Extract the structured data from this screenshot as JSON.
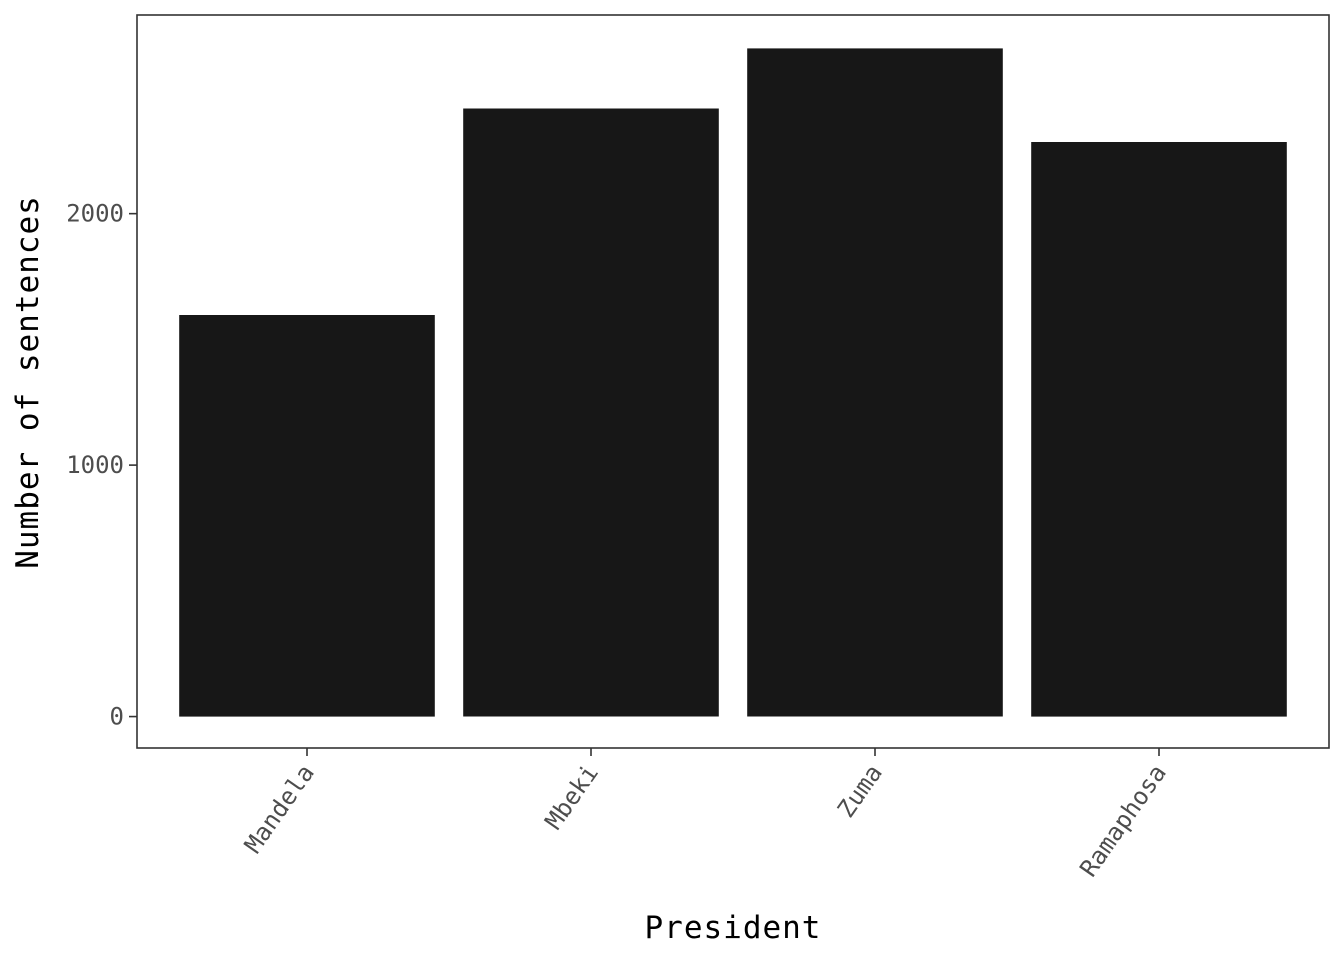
{
  "chart_data": {
    "type": "bar",
    "title": "",
    "xlabel": "President",
    "ylabel": "Number of sentences",
    "categories": [
      "Mandela",
      "Mbeki",
      "Zuma",
      "Ramaphosa"
    ],
    "values": [
      1597,
      2418,
      2657,
      2285
    ],
    "ylim": [
      -125,
      2790
    ],
    "yticks": [
      0,
      1000,
      2000
    ],
    "grid": false,
    "legend": "none",
    "bar_color": "#171717",
    "frame_color": "#333333"
  }
}
